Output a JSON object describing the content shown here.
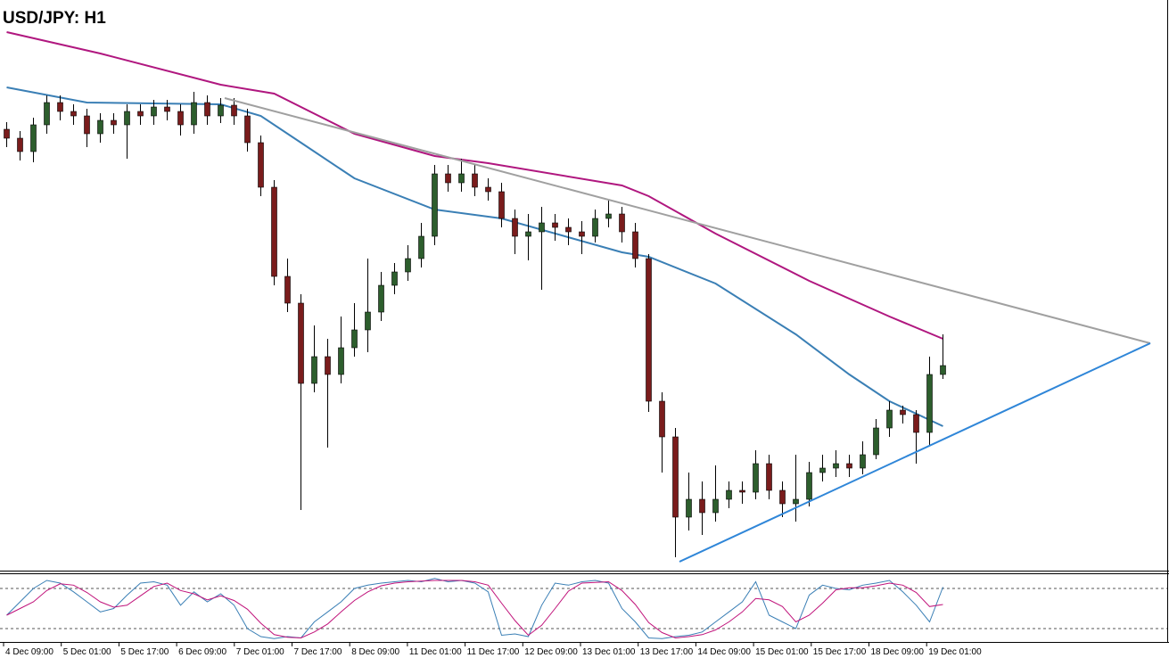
{
  "chart_data": {
    "type": "candlestick",
    "title": "USD/JPY: H1",
    "xlim": [
      -0.5,
      86.9
    ],
    "ylim": [
      111.9,
      113.82
    ],
    "up_color": "#2d5e2d",
    "down_color": "#7a1c1c",
    "candles": [
      [
        113.385,
        113.409,
        113.325,
        113.355
      ],
      [
        113.355,
        113.379,
        113.28,
        113.31
      ],
      [
        113.31,
        113.424,
        113.274,
        113.4
      ],
      [
        113.4,
        113.499,
        113.37,
        113.475
      ],
      [
        113.475,
        113.499,
        113.415,
        113.445
      ],
      [
        113.445,
        113.469,
        113.4,
        113.43
      ],
      [
        113.43,
        113.454,
        113.325,
        113.37
      ],
      [
        113.37,
        113.439,
        113.34,
        113.415
      ],
      [
        113.415,
        113.439,
        113.37,
        113.4
      ],
      [
        113.4,
        113.469,
        113.286,
        113.445
      ],
      [
        113.445,
        113.469,
        113.4,
        113.43
      ],
      [
        113.43,
        113.484,
        113.4,
        113.46
      ],
      [
        113.46,
        113.484,
        113.415,
        113.445
      ],
      [
        113.445,
        113.469,
        113.364,
        113.4
      ],
      [
        113.4,
        113.511,
        113.37,
        113.475
      ],
      [
        113.475,
        113.499,
        113.4,
        113.43
      ],
      [
        113.43,
        113.49,
        113.406,
        113.466
      ],
      [
        113.466,
        113.49,
        113.4,
        113.43
      ],
      [
        113.43,
        113.454,
        113.31,
        113.34
      ],
      [
        113.34,
        113.364,
        113.16,
        113.19
      ],
      [
        113.19,
        113.214,
        112.86,
        112.89
      ],
      [
        112.89,
        112.95,
        112.77,
        112.8
      ],
      [
        112.8,
        112.83,
        112.104,
        112.53
      ],
      [
        112.53,
        112.725,
        112.5,
        112.62
      ],
      [
        112.62,
        112.68,
        112.314,
        112.56
      ],
      [
        112.56,
        112.755,
        112.53,
        112.65
      ],
      [
        112.65,
        112.8,
        112.62,
        112.71
      ],
      [
        112.71,
        112.95,
        112.635,
        112.77
      ],
      [
        112.77,
        112.905,
        112.74,
        112.86
      ],
      [
        112.86,
        112.935,
        112.83,
        112.905
      ],
      [
        112.905,
        112.995,
        112.875,
        112.95
      ],
      [
        112.95,
        113.07,
        112.92,
        113.025
      ],
      [
        113.025,
        113.265,
        112.995,
        113.235
      ],
      [
        113.235,
        113.265,
        113.175,
        113.205
      ],
      [
        113.205,
        113.286,
        113.175,
        113.235
      ],
      [
        113.235,
        113.265,
        113.16,
        113.19
      ],
      [
        113.19,
        113.22,
        113.145,
        113.175
      ],
      [
        113.175,
        113.205,
        113.055,
        113.085
      ],
      [
        113.085,
        113.115,
        112.965,
        113.025
      ],
      [
        113.025,
        113.1,
        112.944,
        113.04
      ],
      [
        113.04,
        113.124,
        112.845,
        113.07
      ],
      [
        113.07,
        113.1,
        113.01,
        113.055
      ],
      [
        113.055,
        113.085,
        112.995,
        113.04
      ],
      [
        113.04,
        113.076,
        112.965,
        113.025
      ],
      [
        113.025,
        113.115,
        113.004,
        113.085
      ],
      [
        113.085,
        113.145,
        113.055,
        113.1
      ],
      [
        113.1,
        113.124,
        113.004,
        113.04
      ],
      [
        113.04,
        113.07,
        112.92,
        112.95
      ],
      [
        112.95,
        112.965,
        112.434,
        112.47
      ],
      [
        112.47,
        112.5,
        112.23,
        112.35
      ],
      [
        112.35,
        112.38,
        111.945,
        112.08
      ],
      [
        112.08,
        112.23,
        112.035,
        112.14
      ],
      [
        112.14,
        112.2,
        112.02,
        112.095
      ],
      [
        112.095,
        112.254,
        112.065,
        112.14
      ],
      [
        112.14,
        112.2,
        112.11,
        112.17
      ],
      [
        112.17,
        112.2,
        112.125,
        112.164
      ],
      [
        112.164,
        112.305,
        112.14,
        112.26
      ],
      [
        112.26,
        112.29,
        112.14,
        112.17
      ],
      [
        112.17,
        112.2,
        112.08,
        112.125
      ],
      [
        112.125,
        112.29,
        112.065,
        112.14
      ],
      [
        112.14,
        112.266,
        112.116,
        112.23
      ],
      [
        112.23,
        112.29,
        112.2,
        112.245
      ],
      [
        112.245,
        112.305,
        112.215,
        112.26
      ],
      [
        112.26,
        112.29,
        112.215,
        112.245
      ],
      [
        112.245,
        112.335,
        112.224,
        112.29
      ],
      [
        112.29,
        112.41,
        112.275,
        112.38
      ],
      [
        112.38,
        112.47,
        112.35,
        112.44
      ],
      [
        112.44,
        112.455,
        112.395,
        112.425
      ],
      [
        112.425,
        112.44,
        112.26,
        112.365
      ],
      [
        112.365,
        112.62,
        112.32,
        112.56
      ],
      [
        112.56,
        112.695,
        112.545,
        112.59
      ]
    ],
    "moving_averages": [
      {
        "color": "#b0177f",
        "x": [
          0,
          7,
          16,
          20,
          26,
          32,
          36,
          46,
          48,
          53,
          60,
          66,
          70
        ],
        "values": [
          113.712,
          113.64,
          113.535,
          113.505,
          113.37,
          113.295,
          113.271,
          113.196,
          113.16,
          113.034,
          112.875,
          112.755,
          112.68
        ]
      },
      {
        "color": "#3a7fb5",
        "x": [
          0,
          6,
          16,
          19,
          22,
          26,
          32,
          37,
          46,
          48,
          53,
          59,
          63,
          66,
          70
        ],
        "values": [
          113.526,
          113.475,
          113.469,
          113.43,
          113.34,
          113.22,
          113.115,
          113.085,
          112.971,
          112.956,
          112.866,
          112.695,
          112.56,
          112.47,
          112.386
        ]
      }
    ],
    "trendlines": [
      {
        "color": "#a0a0a0",
        "x": [
          16.3,
          85.5
        ],
        "values": [
          113.49,
          112.665
        ]
      },
      {
        "color": "#2f86d8",
        "x": [
          50.3,
          85.5
        ],
        "values": [
          111.93,
          112.665
        ]
      }
    ],
    "oscillator": {
      "ylim": [
        0,
        100
      ],
      "levels": [
        80,
        20
      ],
      "series": [
        {
          "color": "#3a7fb5",
          "values": [
            40,
            60,
            80,
            92,
            88,
            75,
            60,
            45,
            50,
            70,
            88,
            90,
            85,
            55,
            75,
            60,
            72,
            55,
            20,
            8,
            5,
            8,
            6,
            30,
            45,
            60,
            80,
            85,
            88,
            90,
            92,
            90,
            95,
            90,
            92,
            88,
            75,
            10,
            12,
            8,
            55,
            88,
            85,
            90,
            92,
            88,
            50,
            30,
            6,
            5,
            8,
            10,
            15,
            30,
            45,
            60,
            90,
            40,
            30,
            20,
            70,
            85,
            80,
            78,
            85,
            88,
            92,
            75,
            55,
            30,
            82
          ]
        },
        {
          "color": "#c0127a",
          "values": [
            40,
            50,
            60,
            77,
            87,
            85,
            74,
            60,
            52,
            55,
            69,
            83,
            88,
            77,
            72,
            63,
            69,
            62,
            49,
            28,
            11,
            7,
            6,
            15,
            27,
            45,
            62,
            75,
            84,
            88,
            90,
            91,
            92,
            92,
            92,
            90,
            85,
            58,
            32,
            10,
            25,
            50,
            76,
            88,
            89,
            90,
            77,
            56,
            29,
            14,
            6,
            8,
            11,
            18,
            30,
            45,
            65,
            63,
            53,
            30,
            40,
            58,
            78,
            81,
            81,
            84,
            88,
            85,
            74,
            53,
            56
          ]
        }
      ]
    },
    "x_labels": [
      "4 Dec 09:00",
      "5 Dec 01:00",
      "5 Dec 17:00",
      "6 Dec 09:00",
      "7 Dec 01:00",
      "7 Dec 17:00",
      "8 Dec 09:00",
      "11 Dec 01:00",
      "11 Dec 17:00",
      "12 Dec 09:00",
      "13 Dec 01:00",
      "13 Dec 17:00",
      "14 Dec 09:00",
      "15 Dec 01:00",
      "15 Dec 17:00",
      "18 Dec 09:00",
      "19 Dec 01:00"
    ]
  }
}
